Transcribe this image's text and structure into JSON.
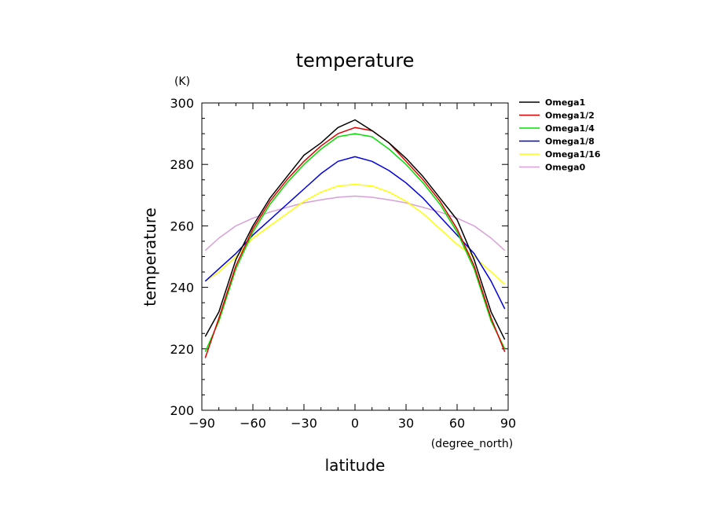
{
  "chart_data": {
    "type": "line",
    "title": "temperature",
    "xlabel": "latitude",
    "xunit": "(degree_north)",
    "ylabel": "temperature",
    "yunit": "(K)",
    "xlim": [
      -90,
      90
    ],
    "ylim": [
      200,
      300
    ],
    "xticks": [
      "−90",
      "−60",
      "−30",
      "0",
      "30",
      "60",
      "90"
    ],
    "yticks": [
      "200",
      "220",
      "240",
      "260",
      "280",
      "300"
    ],
    "legend_position": "right",
    "grid": false,
    "x": [
      -88,
      -80,
      -70,
      -60,
      -50,
      -40,
      -30,
      -20,
      -10,
      0,
      10,
      20,
      30,
      40,
      50,
      60,
      70,
      80,
      88
    ],
    "series": [
      {
        "name": "Omega1",
        "color": "#000000",
        "values": [
          224,
          232,
          249,
          260,
          269,
          276,
          283,
          287,
          292,
          294.5,
          291,
          287,
          282,
          276,
          269,
          262,
          249,
          232,
          223
        ]
      },
      {
        "name": "Omega1/2",
        "color": "#e00000",
        "values": [
          217,
          230,
          247,
          259,
          268,
          275,
          281,
          286,
          290,
          292,
          291,
          287,
          281,
          275,
          268,
          259,
          247,
          230,
          219
        ]
      },
      {
        "name": "Omega1/4",
        "color": "#00e000",
        "values": [
          219,
          229,
          246,
          258,
          267,
          274,
          280,
          285,
          289,
          290,
          289,
          285,
          280,
          274,
          267,
          258,
          246,
          229,
          220
        ]
      },
      {
        "name": "Omega1/8",
        "color": "#0000e0",
        "values": [
          242,
          246,
          251,
          257,
          262,
          267,
          272,
          277,
          281,
          282.5,
          281,
          278,
          274,
          269,
          263,
          257,
          251,
          242,
          233
        ]
      },
      {
        "name": "Omega1/16",
        "color": "#ffff00",
        "values": [
          242,
          245,
          250,
          256,
          260,
          264,
          268,
          271,
          273,
          273.5,
          273,
          271,
          268,
          264,
          259,
          254,
          250,
          245,
          241
        ]
      },
      {
        "name": "Omega0",
        "color": "#d8a0d8",
        "values": [
          252,
          256,
          260,
          262.5,
          264.5,
          266,
          267.5,
          268.5,
          269.3,
          269.7,
          269.3,
          268.5,
          267.5,
          266,
          264.5,
          262.5,
          260,
          256,
          252
        ]
      }
    ]
  }
}
